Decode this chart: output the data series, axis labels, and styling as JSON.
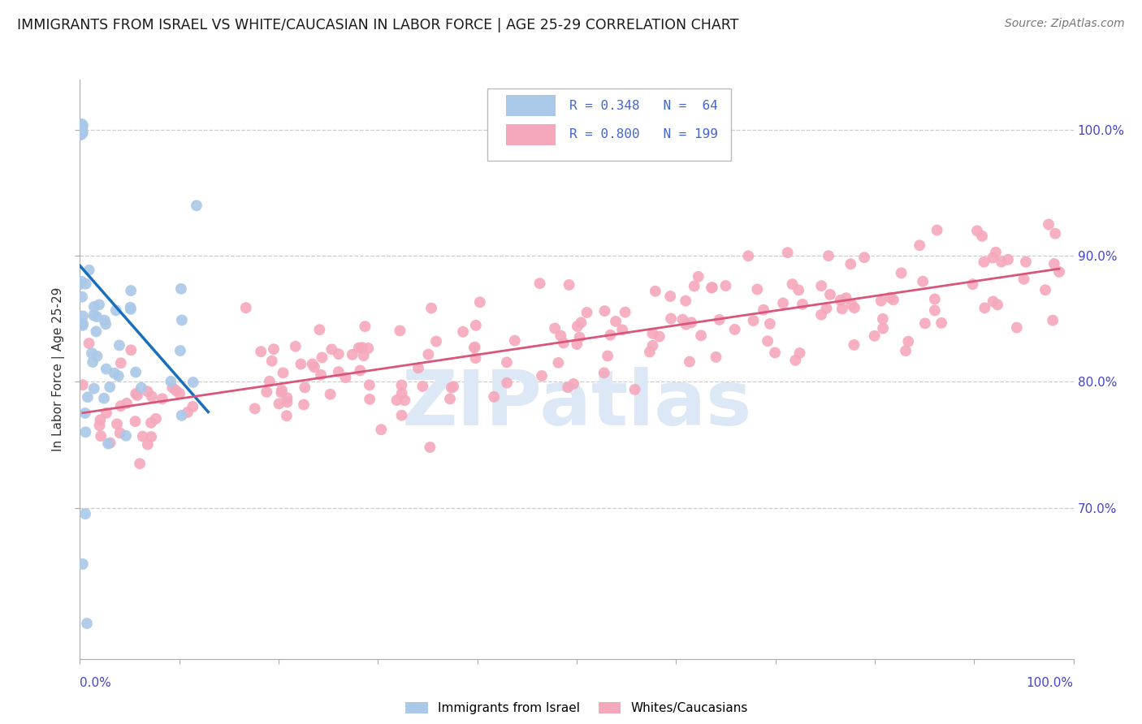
{
  "title": "IMMIGRANTS FROM ISRAEL VS WHITE/CAUCASIAN IN LABOR FORCE | AGE 25-29 CORRELATION CHART",
  "source": "Source: ZipAtlas.com",
  "ylabel": "In Labor Force | Age 25-29",
  "xlim": [
    0,
    1
  ],
  "ylim": [
    0.58,
    1.04
  ],
  "yticks_shown": [
    0.7,
    0.8,
    0.9,
    1.0
  ],
  "ytick_labels_shown": [
    "70.0%",
    "80.0%",
    "90.0%",
    "100.0%"
  ],
  "israel_R": 0.348,
  "israel_N": 64,
  "white_R": 0.8,
  "white_N": 199,
  "israel_color": "#aac8e8",
  "israel_edge_color": "#aac8e8",
  "israel_line_color": "#1a6fbd",
  "white_color": "#f5a8bc",
  "white_edge_color": "#f5a8bc",
  "white_line_color": "#d9557a",
  "background_color": "#ffffff",
  "grid_color": "#cccccc",
  "title_color": "#1a1a1a",
  "source_color": "#777777",
  "axis_label_color": "#4444cc",
  "legend_color": "#4466cc",
  "watermark_text": "ZIPatlas",
  "watermark_color": "#dce8f5"
}
